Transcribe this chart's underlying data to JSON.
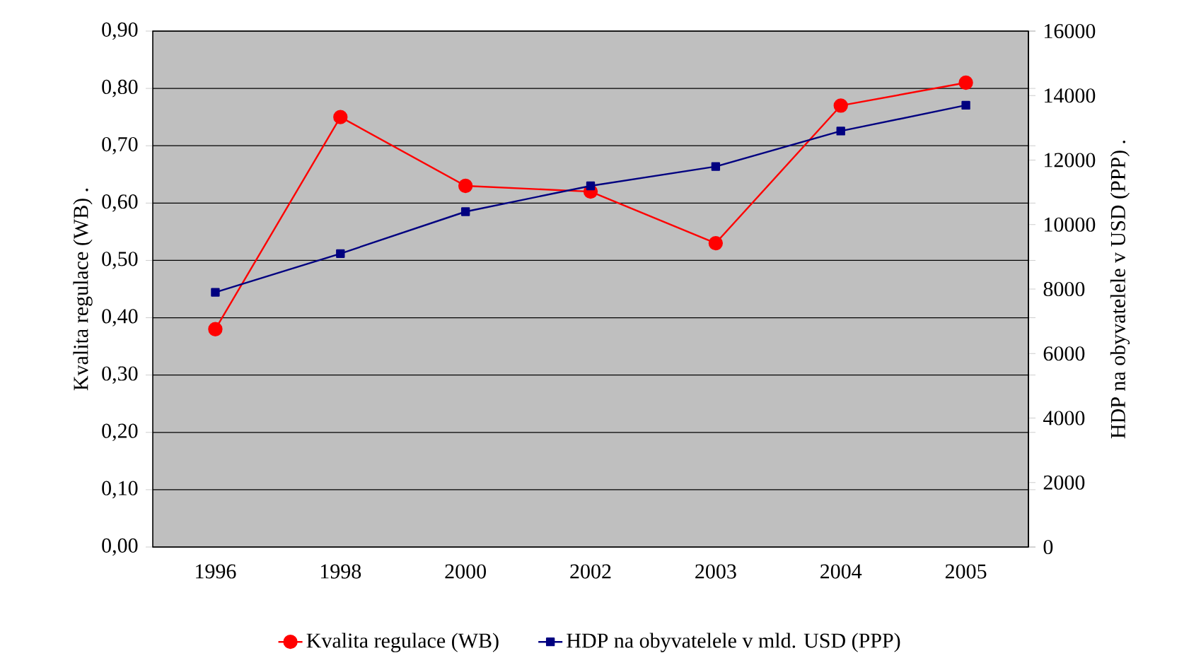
{
  "chart_data": {
    "type": "line",
    "categories": [
      "1996",
      "1998",
      "2000",
      "2002",
      "2003",
      "2004",
      "2005"
    ],
    "ylabel": "Kvalita regulace (WB)    .",
    "y2label": "HDP na obyvatelele v USD (PPP)    .",
    "series": [
      {
        "name": "Kvalita regulace (WB)",
        "color": "#ff0000",
        "marker": "circle",
        "values": [
          0.38,
          0.75,
          0.63,
          0.62,
          0.53,
          0.77,
          0.81
        ]
      },
      {
        "name": "HDP na obyvatelele v mld. USD (PPP)",
        "color": "#000080",
        "marker": "square",
        "axis": "y2",
        "values": [
          7900,
          9100,
          10400,
          11200,
          11800,
          12900,
          13700
        ]
      }
    ],
    "ylim": [
      0,
      0.9
    ],
    "yticks": [
      {
        "value": 0,
        "label": "0,00"
      },
      {
        "value": 0.1,
        "label": "0,10"
      },
      {
        "value": 0.2,
        "label": "0,20"
      },
      {
        "value": 0.3,
        "label": "0,30"
      },
      {
        "value": 0.4,
        "label": "0,40"
      },
      {
        "value": 0.5,
        "label": "0,50"
      },
      {
        "value": 0.6,
        "label": "0,60"
      },
      {
        "value": 0.7,
        "label": "0,70"
      },
      {
        "value": 0.8,
        "label": "0,80"
      },
      {
        "value": 0.9,
        "label": "0,90"
      }
    ],
    "y2lim": [
      0,
      16000
    ],
    "y2ticks": [
      0,
      2000,
      4000,
      6000,
      8000,
      10000,
      12000,
      14000,
      16000
    ],
    "grid": "y",
    "legend": "bottom",
    "line_style": "solid"
  }
}
